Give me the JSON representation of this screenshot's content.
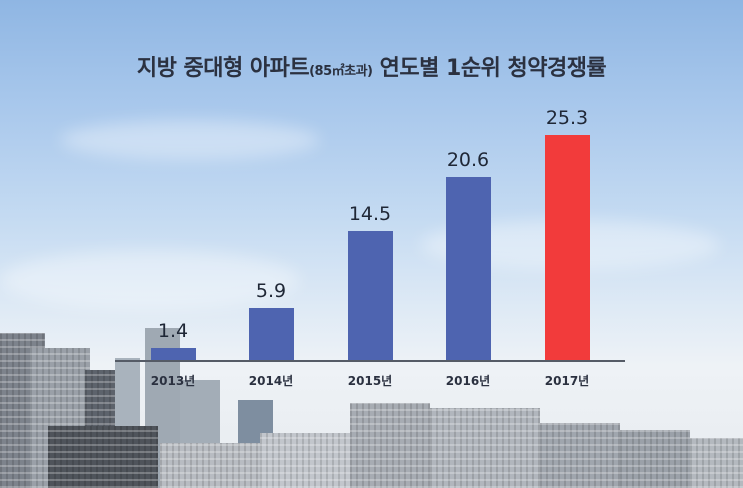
{
  "title": {
    "main_before": "지방 중대형 아파트",
    "small": "(85㎡초과)",
    "main_after": " 연도별 1순위 청약경쟁률"
  },
  "colors": {
    "bar_default": "#4e64b0",
    "bar_highlight": "#f23b3b",
    "axis": "#555b66",
    "text": "#1f2736"
  },
  "bars": [
    {
      "label": "2013년",
      "value": "1.4"
    },
    {
      "label": "2014년",
      "value": "5.9"
    },
    {
      "label": "2015년",
      "value": "14.5"
    },
    {
      "label": "2016년",
      "value": "20.6"
    },
    {
      "label": "2017년",
      "value": "25.3"
    }
  ],
  "chart_data": {
    "type": "bar",
    "title": "지방 중대형 아파트(85㎡초과) 연도별 1순위 청약경쟁률",
    "categories": [
      "2013년",
      "2014년",
      "2015년",
      "2016년",
      "2017년"
    ],
    "values": [
      1.4,
      5.9,
      14.5,
      20.6,
      25.3
    ],
    "highlight": "2017년",
    "xlabel": "",
    "ylabel": "",
    "ylim": [
      0,
      25.3
    ],
    "grid": false,
    "data_labels": true
  }
}
